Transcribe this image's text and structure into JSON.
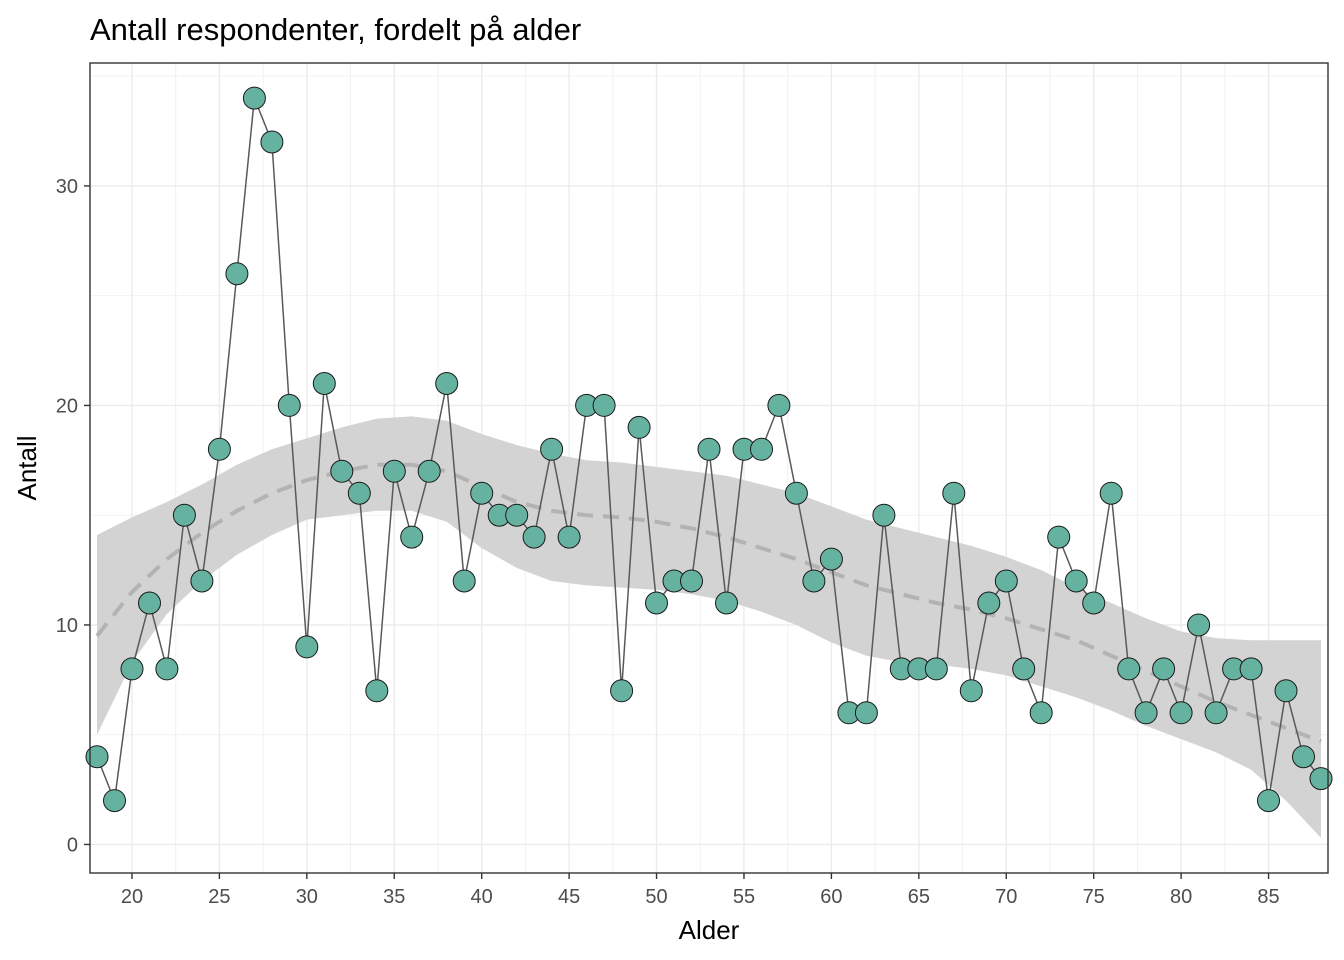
{
  "chart_data": {
    "type": "line",
    "title": "Antall respondenter, fordelt på alder",
    "xlabel": "Alder",
    "ylabel": "Antall",
    "xlim": [
      17.6,
      88.4
    ],
    "ylim": [
      -1.3,
      35.6
    ],
    "x_ticks": [
      20,
      25,
      30,
      35,
      40,
      45,
      50,
      55,
      60,
      65,
      70,
      75,
      80,
      85
    ],
    "y_ticks": [
      0,
      10,
      20,
      30
    ],
    "grid": true,
    "series": [
      {
        "name": "Antall",
        "point_color": "#66b2a1",
        "line_color": "#595959",
        "x": [
          18,
          19,
          20,
          21,
          22,
          23,
          24,
          25,
          26,
          27,
          28,
          29,
          30,
          31,
          32,
          33,
          34,
          35,
          36,
          37,
          38,
          39,
          40,
          41,
          42,
          43,
          44,
          45,
          46,
          47,
          48,
          49,
          50,
          51,
          52,
          53,
          54,
          55,
          56,
          57,
          58,
          59,
          60,
          61,
          62,
          63,
          64,
          65,
          66,
          67,
          68,
          69,
          70,
          71,
          72,
          73,
          74,
          75,
          76,
          77,
          78,
          79,
          80,
          81,
          82,
          83,
          84,
          85,
          86,
          87,
          88
        ],
        "values": [
          4,
          2,
          8,
          11,
          8,
          15,
          12,
          18,
          26,
          34,
          32,
          20,
          9,
          21,
          17,
          16,
          7,
          17,
          14,
          17,
          21,
          12,
          16,
          15,
          15,
          14,
          18,
          14,
          20,
          20,
          7,
          19,
          11,
          12,
          12,
          18,
          11,
          18,
          18,
          20,
          16,
          12,
          13,
          6,
          6,
          15,
          8,
          8,
          8,
          16,
          7,
          11,
          12,
          8,
          6,
          14,
          12,
          11,
          16,
          8,
          6,
          8,
          6,
          10,
          6,
          8,
          8,
          2,
          7,
          4,
          3
        ]
      }
    ],
    "smooth": {
      "name": "loess",
      "line_color": "#b3b3b3",
      "band_color": "#d3d3d3",
      "x": [
        18,
        20,
        22,
        24,
        26,
        28,
        30,
        32,
        34,
        36,
        38,
        40,
        42,
        44,
        46,
        48,
        50,
        52,
        54,
        56,
        58,
        60,
        62,
        64,
        66,
        68,
        70,
        72,
        74,
        76,
        78,
        80,
        82,
        84,
        86,
        88
      ],
      "fit": [
        9.5,
        11.5,
        13.0,
        14.2,
        15.2,
        16.0,
        16.6,
        17.0,
        17.3,
        17.3,
        17.0,
        16.3,
        15.6,
        15.2,
        15.0,
        14.9,
        14.7,
        14.4,
        14.0,
        13.5,
        13.0,
        12.4,
        11.8,
        11.4,
        11.0,
        10.7,
        10.3,
        9.8,
        9.3,
        8.6,
        7.9,
        7.2,
        6.5,
        5.9,
        5.3,
        4.7
      ],
      "lower": [
        5.0,
        8.3,
        10.5,
        12.0,
        13.2,
        14.1,
        14.8,
        15.0,
        15.2,
        15.2,
        14.7,
        13.5,
        12.6,
        12.0,
        11.8,
        11.7,
        11.6,
        11.4,
        11.1,
        10.6,
        10.0,
        9.2,
        8.6,
        8.3,
        8.2,
        8.0,
        7.7,
        7.2,
        6.7,
        6.1,
        5.4,
        4.8,
        4.2,
        3.4,
        2.0,
        0.3
      ],
      "upper": [
        14.1,
        14.9,
        15.6,
        16.4,
        17.3,
        18.0,
        18.5,
        19.0,
        19.4,
        19.5,
        19.3,
        18.7,
        18.2,
        17.8,
        17.5,
        17.4,
        17.2,
        17.0,
        16.8,
        16.4,
        16.0,
        15.4,
        14.8,
        14.4,
        14.0,
        13.6,
        13.1,
        12.5,
        11.7,
        11.0,
        10.3,
        9.7,
        9.4,
        9.3,
        9.3,
        9.3
      ]
    }
  }
}
